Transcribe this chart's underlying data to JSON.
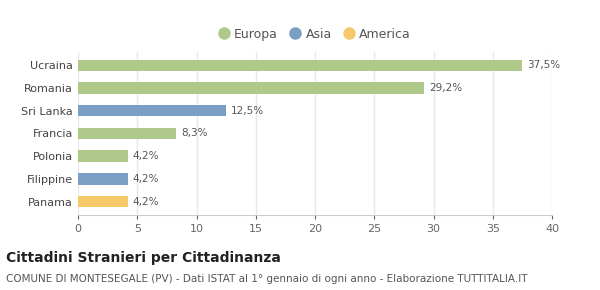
{
  "categories": [
    "Ucraina",
    "Romania",
    "Sri Lanka",
    "Francia",
    "Polonia",
    "Filippine",
    "Panama"
  ],
  "values": [
    37.5,
    29.2,
    12.5,
    8.3,
    4.2,
    4.2,
    4.2
  ],
  "labels": [
    "37,5%",
    "29,2%",
    "12,5%",
    "8,3%",
    "4,2%",
    "4,2%",
    "4,2%"
  ],
  "colors": [
    "#aec98a",
    "#aec98a",
    "#7b9ec4",
    "#aec98a",
    "#aec98a",
    "#7b9ec4",
    "#f5c96a"
  ],
  "legend": [
    {
      "label": "Europa",
      "color": "#aec98a"
    },
    {
      "label": "Asia",
      "color": "#7b9ec4"
    },
    {
      "label": "America",
      "color": "#f5c96a"
    }
  ],
  "xlim": [
    0,
    40
  ],
  "xticks": [
    0,
    5,
    10,
    15,
    20,
    25,
    30,
    35,
    40
  ],
  "title": "Cittadini Stranieri per Cittadinanza",
  "subtitle": "COMUNE DI MONTESEGALE (PV) - Dati ISTAT al 1° gennaio di ogni anno - Elaborazione TUTTITALIA.IT",
  "background_color": "#ffffff",
  "grid_color": "#e8e8e8",
  "bar_height": 0.5,
  "title_fontsize": 10,
  "subtitle_fontsize": 7.5,
  "label_fontsize": 7.5,
  "tick_fontsize": 8,
  "legend_fontsize": 9
}
